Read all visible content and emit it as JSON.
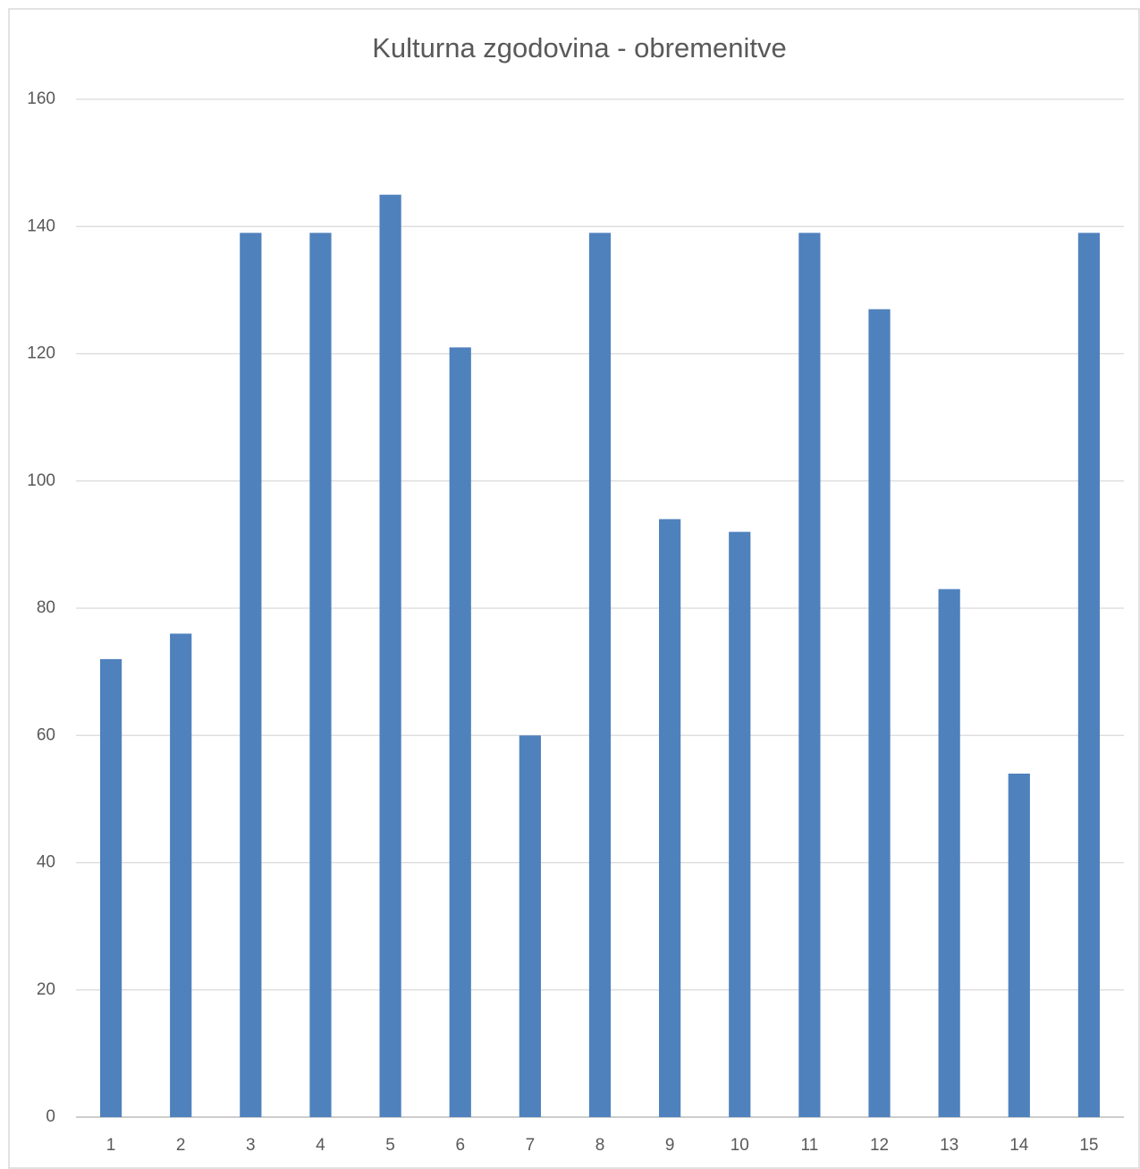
{
  "chart_data": {
    "type": "bar",
    "title": "Kulturna zgodovina - obremenitve",
    "categories": [
      "1",
      "2",
      "3",
      "4",
      "5",
      "6",
      "7",
      "8",
      "9",
      "10",
      "11",
      "12",
      "13",
      "14",
      "15"
    ],
    "values": [
      72,
      76,
      139,
      139,
      145,
      121,
      60,
      139,
      94,
      92,
      139,
      127,
      83,
      54,
      139
    ],
    "color": "#4f81bd",
    "ylim": [
      0,
      160
    ],
    "yticks": [
      0,
      20,
      40,
      60,
      80,
      100,
      120,
      140,
      160
    ],
    "grid": true
  }
}
